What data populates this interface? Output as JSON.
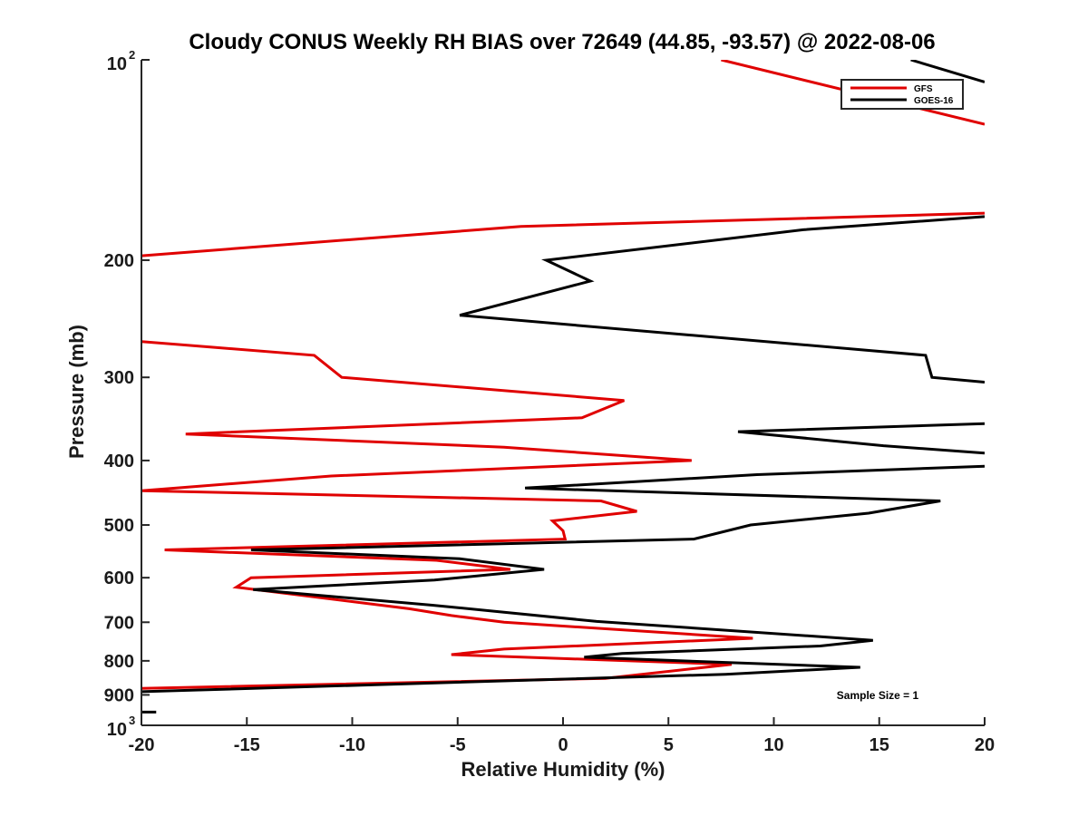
{
  "chart_data": {
    "type": "line",
    "title": "Cloudy CONUS Weekly RH BIAS over 72649 (44.85, -93.57) @ 2022-08-06",
    "xlabel": "Relative Humidity (%)",
    "ylabel": "Pressure (mb)",
    "xlim": [
      -20,
      20
    ],
    "ylim": [
      100,
      1000
    ],
    "yscale": "log",
    "y_reversed": true,
    "xticks": [
      -20,
      -15,
      -10,
      -5,
      0,
      5,
      10,
      15,
      20
    ],
    "yticks": [
      {
        "value": 100,
        "label": "10",
        "sup": "2"
      },
      {
        "value": 200,
        "label": "200"
      },
      {
        "value": 300,
        "label": "300"
      },
      {
        "value": 400,
        "label": "400"
      },
      {
        "value": 500,
        "label": "500"
      },
      {
        "value": 600,
        "label": "600"
      },
      {
        "value": 700,
        "label": "700"
      },
      {
        "value": 800,
        "label": "800"
      },
      {
        "value": 900,
        "label": "900"
      },
      {
        "value": 1000,
        "label": "10",
        "sup": "3"
      }
    ],
    "legend_position": "top-right",
    "annotation": "Sample Size = 1",
    "series": [
      {
        "name": "GFS",
        "color": "#e00000",
        "points": [
          [
            7.5,
            100
          ],
          [
            20,
            125
          ],
          null,
          [
            20,
            170
          ],
          [
            -2,
            178
          ],
          [
            -20,
            197
          ],
          null,
          [
            -20,
            265
          ],
          [
            -11.8,
            278
          ],
          [
            -10.5,
            300
          ],
          [
            2.9,
            325
          ],
          [
            0.9,
            345
          ],
          [
            -17.9,
            365
          ],
          [
            -2.8,
            382
          ],
          [
            6.1,
            400
          ],
          [
            -11,
            422
          ],
          [
            -20,
            444
          ],
          [
            1.8,
            460
          ],
          [
            3.5,
            477
          ],
          [
            -0.5,
            493
          ],
          [
            0,
            510
          ],
          [
            0.1,
            525
          ],
          [
            -18.9,
            545
          ],
          [
            -6,
            565
          ],
          [
            -2.5,
            583
          ],
          [
            -14.8,
            600
          ],
          [
            -15.5,
            620
          ],
          [
            -7.3,
            668
          ],
          [
            -5.3,
            684
          ],
          [
            -2.8,
            700
          ],
          [
            9,
            740
          ],
          [
            -2.8,
            768
          ],
          [
            -5.3,
            783
          ],
          [
            8,
            810
          ],
          [
            2,
            850
          ],
          [
            -20,
            880
          ]
        ]
      },
      {
        "name": "GOES-16",
        "color": "#000000",
        "points": [
          [
            16.5,
            100
          ],
          [
            20,
            108
          ],
          null,
          [
            20,
            172
          ],
          [
            11.4,
            180
          ],
          [
            -0.8,
            200
          ],
          [
            1.3,
            215
          ],
          [
            -4.9,
            242
          ],
          [
            17.2,
            278
          ],
          [
            17.5,
            300
          ],
          [
            20,
            305
          ],
          null,
          [
            20,
            352
          ],
          [
            8.3,
            362
          ],
          [
            15.2,
            380
          ],
          [
            20,
            390
          ],
          null,
          [
            20,
            408
          ],
          [
            9.2,
            420
          ],
          [
            -1.8,
            440
          ],
          [
            17.9,
            460
          ],
          [
            14.5,
            480
          ],
          [
            8.9,
            500
          ],
          [
            6.2,
            525
          ],
          [
            -14.8,
            545
          ],
          [
            -4.9,
            562
          ],
          [
            -0.9,
            583
          ],
          [
            -6.1,
            605
          ],
          [
            -14.7,
            625
          ],
          [
            -6.2,
            660
          ],
          [
            -2.8,
            676
          ],
          [
            1.6,
            698
          ],
          [
            14.7,
            745
          ],
          [
            12.2,
            760
          ],
          [
            2.8,
            780
          ],
          [
            1.0,
            790
          ],
          [
            14.1,
            818
          ],
          [
            7.7,
            838
          ],
          [
            -20,
            890
          ]
        ]
      }
    ],
    "extra_marks": [
      {
        "color": "#000000",
        "points": [
          [
            -20,
            955
          ],
          [
            -19.3,
            955
          ]
        ]
      }
    ]
  }
}
